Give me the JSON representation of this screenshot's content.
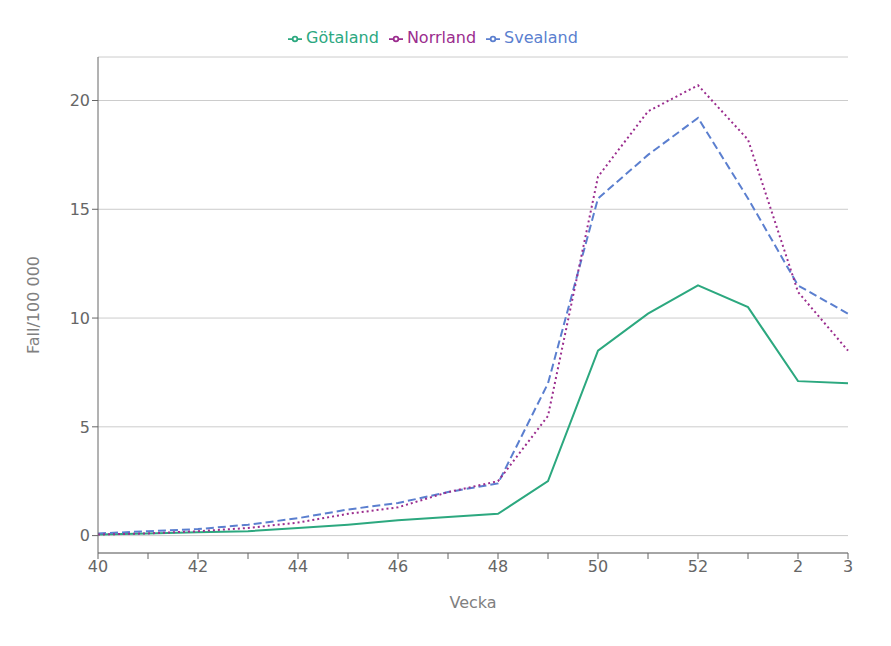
{
  "chart_data": {
    "type": "line",
    "xlabel": "Vecka",
    "ylabel": "Fall/100 000",
    "categories": [
      "40",
      null,
      "42",
      null,
      "44",
      null,
      "46",
      null,
      "48",
      null,
      "50",
      null,
      "52",
      null,
      "2",
      "3"
    ],
    "series": [
      {
        "name": "Götaland",
        "color": "#2ca87f",
        "line_style": "solid",
        "values": [
          0.05,
          0.1,
          0.15,
          0.2,
          0.35,
          0.5,
          0.7,
          0.85,
          1.0,
          2.5,
          8.5,
          10.2,
          11.5,
          10.5,
          7.1,
          7.0
        ]
      },
      {
        "name": "Svealand",
        "color": "#5b7fcf",
        "line_style": "dashed",
        "values": [
          0.1,
          0.2,
          0.3,
          0.5,
          0.8,
          1.2,
          1.5,
          2.0,
          2.4,
          7.0,
          15.5,
          17.5,
          19.2,
          15.5,
          11.5,
          10.2
        ]
      },
      {
        "name": "Norrland",
        "color": "#9b2d8e",
        "line_style": "dotted",
        "values": [
          0.05,
          0.1,
          0.2,
          0.35,
          0.6,
          1.0,
          1.3,
          2.0,
          2.5,
          5.5,
          16.5,
          19.5,
          20.7,
          18.2,
          11.2,
          8.5
        ]
      }
    ],
    "ylim": [
      -0.8,
      22
    ],
    "yticks": [
      0,
      5,
      10,
      15,
      20
    ],
    "grid": true,
    "legend": "top"
  }
}
